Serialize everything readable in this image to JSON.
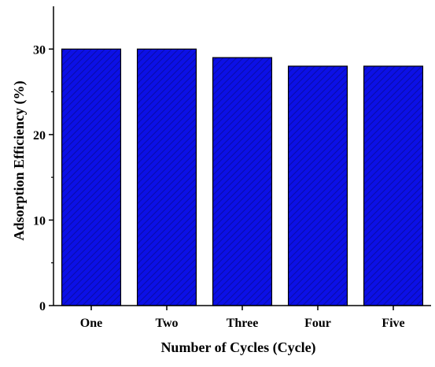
{
  "chart_data": {
    "type": "bar",
    "categories": [
      "One",
      "Two",
      "Three",
      "Four",
      "Five"
    ],
    "values": [
      30,
      30,
      29,
      28,
      28
    ],
    "xlabel": "Number of Cycles (Cycle)",
    "ylabel": "Adsorption Efficiency (%)",
    "ylim": [
      0,
      35
    ],
    "yticks": [
      0,
      10,
      20,
      30
    ],
    "grid": false,
    "bar_color": "#0c10e6",
    "bar_hatch": "diagonal"
  }
}
